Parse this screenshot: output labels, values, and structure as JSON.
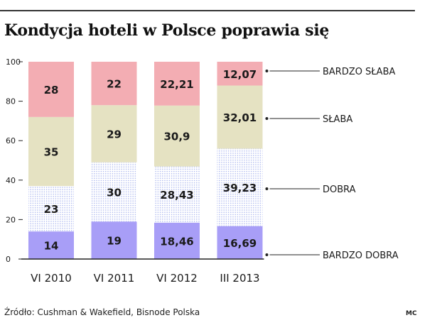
{
  "title": "Kondycja hoteli w Polsce poprawia się",
  "source": "Źródło: Cushman & Wakefield, Bisnode Polska",
  "credit": "MC",
  "colors": {
    "bardzo_dobra": "#a89ef7",
    "dobra_bg": "#ffffff",
    "dobra_dot": "#a8b4ee",
    "slaba": "#e5e2c2",
    "bardzo_slaba": "#f3adb3",
    "axis": "#222222",
    "text": "#1a1a1a"
  },
  "chart_data": {
    "type": "bar",
    "stacked": true,
    "categories": [
      "VI 2010",
      "VI 2011",
      "VI 2012",
      "III 2013"
    ],
    "series": [
      {
        "name": "BARDZO DOBRA",
        "values": [
          14,
          19,
          18.46,
          16.69
        ],
        "labels": [
          "14",
          "19",
          "18,46",
          "16,69"
        ]
      },
      {
        "name": "DOBRA",
        "values": [
          23,
          30,
          28.43,
          39.23
        ],
        "labels": [
          "23",
          "30",
          "28,43",
          "39,23"
        ]
      },
      {
        "name": "SŁABA",
        "values": [
          35,
          29,
          30.9,
          32.01
        ],
        "labels": [
          "35",
          "29",
          "30,9",
          "32,01"
        ]
      },
      {
        "name": "BARDZO SŁABA",
        "values": [
          28,
          22,
          22.21,
          12.07
        ],
        "labels": [
          "28",
          "22",
          "22,21",
          "12,07"
        ]
      }
    ],
    "yticks": [
      "0",
      "20",
      "40",
      "60",
      "80",
      "100"
    ],
    "ylim": [
      0,
      100
    ],
    "grid": false,
    "legend_placement": "right"
  }
}
